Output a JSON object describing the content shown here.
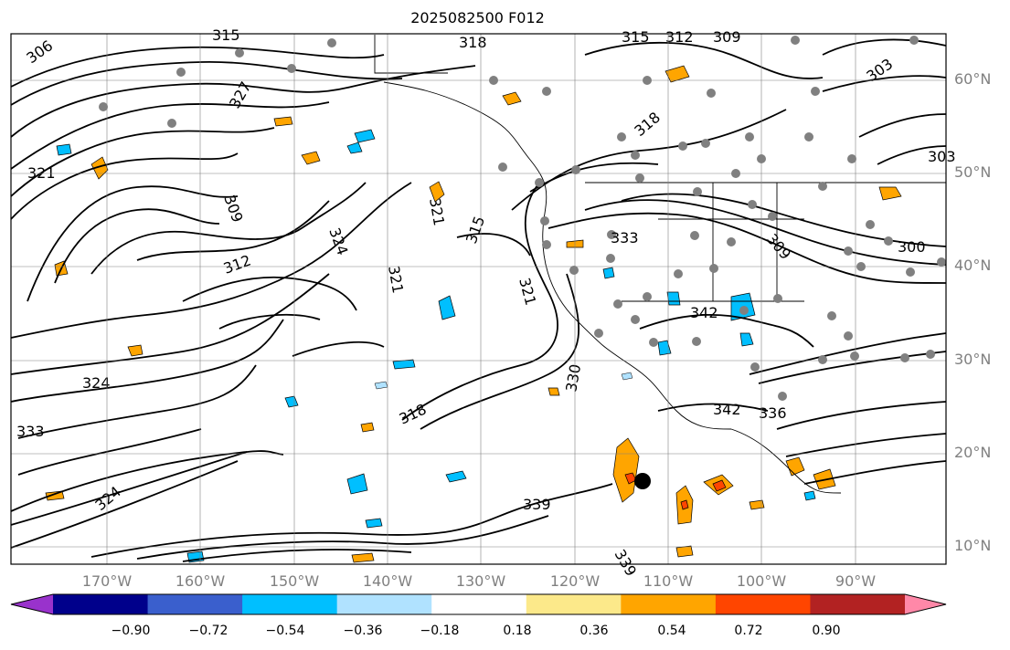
{
  "title": "2025082500 F012",
  "lat_labels": [
    "60°N",
    "50°N",
    "40°N",
    "30°N",
    "20°N",
    "10°N"
  ],
  "lon_labels": [
    "170°W",
    "160°W",
    "150°W",
    "140°W",
    "130°W",
    "120°W",
    "110°W",
    "100°W",
    "90°W"
  ],
  "contour_labels": [
    "306",
    "309",
    "312",
    "315",
    "318",
    "321",
    "324",
    "327",
    "330",
    "333",
    "336",
    "339",
    "342",
    "303",
    "300"
  ],
  "colorbar": {
    "ticks": [
      "−0.90",
      "−0.72",
      "−0.54",
      "−0.36",
      "−0.18",
      "0.18",
      "0.36",
      "0.54",
      "0.72",
      "0.90"
    ],
    "colors": [
      "#9932cc",
      "#00008b",
      "#3a5fcd",
      "#00bfff",
      "#b0e2ff",
      "#ffffff",
      "#fce98a",
      "#ffa500",
      "#ff4500",
      "#b22222",
      "#ff88a8"
    ]
  },
  "colors": {
    "positive": "#ffa500",
    "positive_strong": "#ff4500",
    "negative": "#00bfff",
    "negative_light": "#b0e2ff",
    "stations": "#808080"
  }
}
